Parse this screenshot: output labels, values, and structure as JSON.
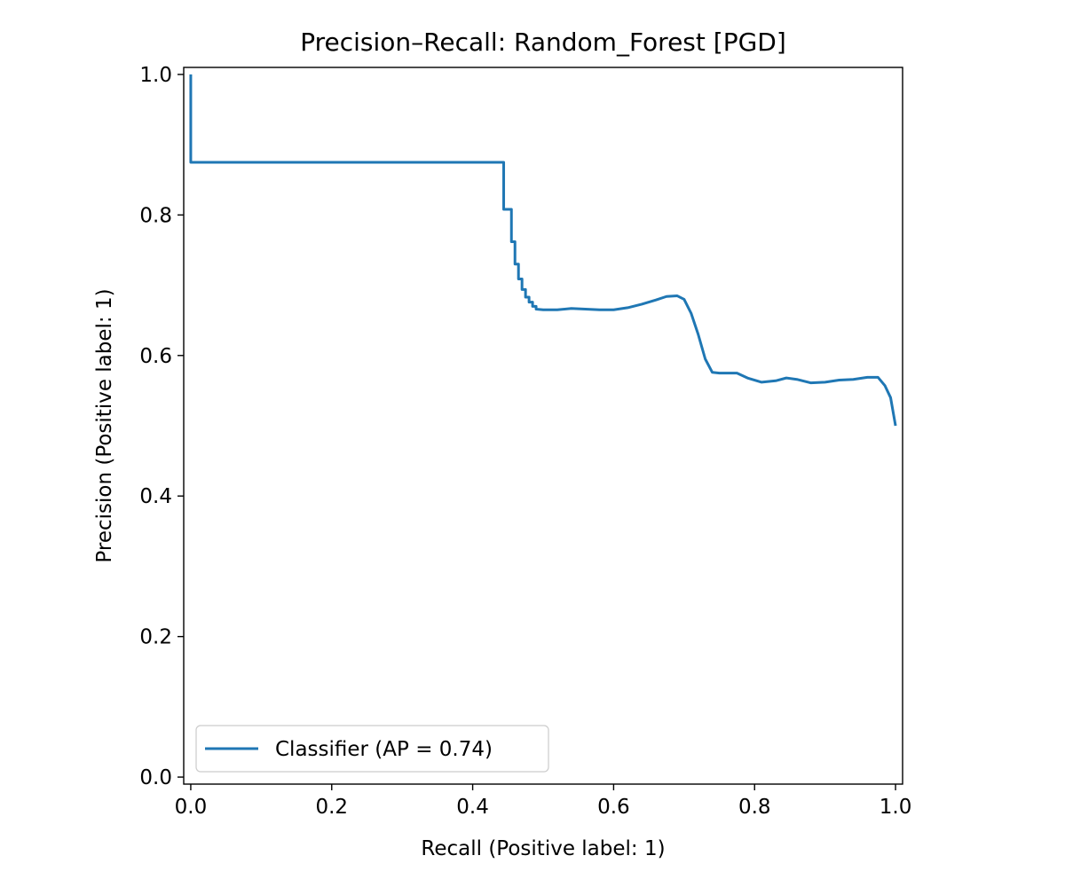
{
  "chart_data": {
    "type": "line",
    "title": "Precision–Recall: Random_Forest [PGD]",
    "xlabel": "Recall (Positive label: 1)",
    "ylabel": "Precision (Positive label: 1)",
    "xlim": [
      -0.01,
      1.01
    ],
    "ylim": [
      -0.01,
      1.01
    ],
    "xticks": [
      "0.0",
      "0.2",
      "0.4",
      "0.6",
      "0.8",
      "1.0"
    ],
    "yticks": [
      "0.0",
      "0.2",
      "0.4",
      "0.6",
      "0.8",
      "1.0"
    ],
    "grid": false,
    "legend_position": "lower-left",
    "series": [
      {
        "name": "Classifier (AP = 0.74)",
        "color": "#1f77b4",
        "step": true,
        "points": [
          [
            0.0,
            1.0
          ],
          [
            0.0,
            0.875
          ],
          [
            0.444,
            0.875
          ],
          [
            0.444,
            0.808
          ],
          [
            0.455,
            0.808
          ],
          [
            0.455,
            0.762
          ],
          [
            0.46,
            0.762
          ],
          [
            0.46,
            0.73
          ],
          [
            0.465,
            0.73
          ],
          [
            0.465,
            0.709
          ],
          [
            0.47,
            0.709
          ],
          [
            0.47,
            0.694
          ],
          [
            0.475,
            0.694
          ],
          [
            0.475,
            0.683
          ],
          [
            0.48,
            0.683
          ],
          [
            0.48,
            0.676
          ],
          [
            0.485,
            0.676
          ],
          [
            0.485,
            0.67
          ],
          [
            0.49,
            0.67
          ],
          [
            0.49,
            0.666
          ],
          [
            0.5,
            0.665
          ],
          [
            0.52,
            0.665
          ],
          [
            0.54,
            0.667
          ],
          [
            0.56,
            0.666
          ],
          [
            0.58,
            0.665
          ],
          [
            0.6,
            0.665
          ],
          [
            0.62,
            0.668
          ],
          [
            0.64,
            0.673
          ],
          [
            0.66,
            0.679
          ],
          [
            0.675,
            0.684
          ],
          [
            0.69,
            0.685
          ],
          [
            0.7,
            0.68
          ],
          [
            0.71,
            0.66
          ],
          [
            0.72,
            0.63
          ],
          [
            0.73,
            0.595
          ],
          [
            0.74,
            0.576
          ],
          [
            0.75,
            0.575
          ],
          [
            0.775,
            0.575
          ],
          [
            0.79,
            0.568
          ],
          [
            0.81,
            0.562
          ],
          [
            0.83,
            0.564
          ],
          [
            0.845,
            0.568
          ],
          [
            0.86,
            0.566
          ],
          [
            0.88,
            0.561
          ],
          [
            0.9,
            0.562
          ],
          [
            0.92,
            0.565
          ],
          [
            0.94,
            0.566
          ],
          [
            0.96,
            0.569
          ],
          [
            0.975,
            0.569
          ],
          [
            0.985,
            0.557
          ],
          [
            0.993,
            0.54
          ],
          [
            1.0,
            0.5
          ]
        ]
      }
    ]
  }
}
